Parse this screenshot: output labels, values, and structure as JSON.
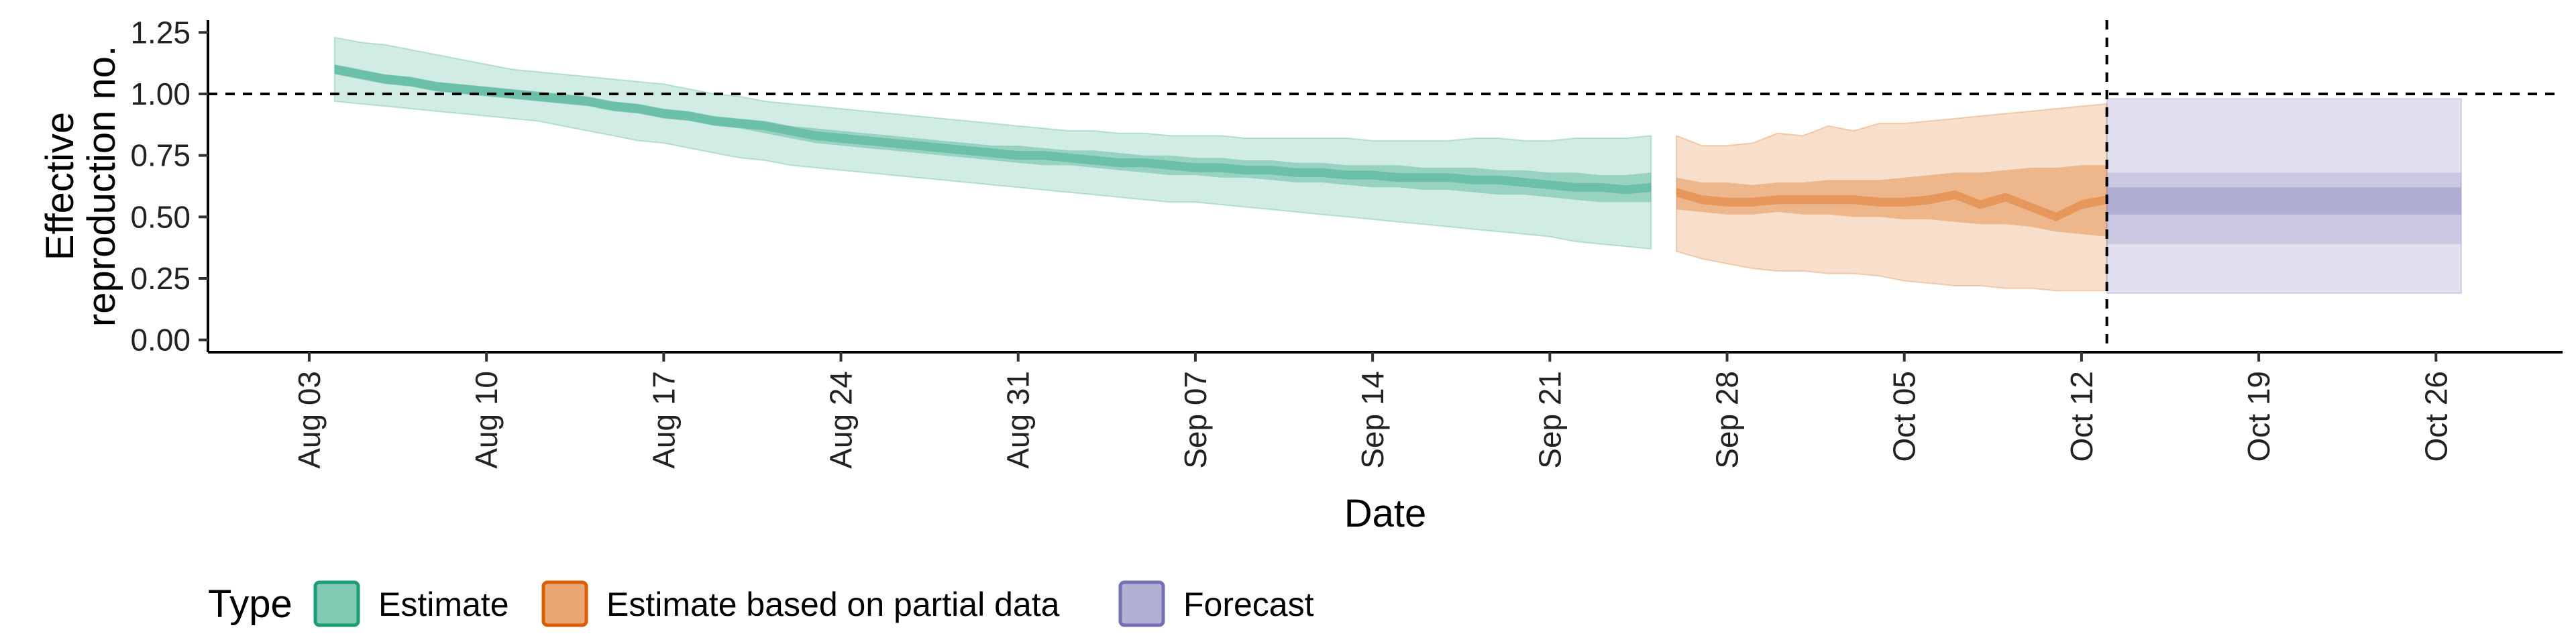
{
  "chart_data": {
    "type": "area",
    "xlabel": "Date",
    "ylabel_lines": [
      "Effective",
      "reproduction no."
    ],
    "ylim": [
      -0.05,
      1.3
    ],
    "y_ticks": [
      0.0,
      0.25,
      0.5,
      0.75,
      1.0,
      1.25
    ],
    "y_tick_labels": [
      "0.00",
      "0.25",
      "0.50",
      "0.75",
      "1.00",
      "1.25"
    ],
    "x_range": [
      "2020-07-30",
      "2020-10-31"
    ],
    "x_ticks": [
      "2020-08-03",
      "2020-08-10",
      "2020-08-17",
      "2020-08-24",
      "2020-08-31",
      "2020-09-07",
      "2020-09-14",
      "2020-09-21",
      "2020-09-28",
      "2020-10-05",
      "2020-10-12",
      "2020-10-19",
      "2020-10-26"
    ],
    "x_tick_labels": [
      "Aug 03",
      "Aug 10",
      "Aug 17",
      "Aug 24",
      "Aug 31",
      "Sep 07",
      "Sep 14",
      "Sep 21",
      "Sep 28",
      "Oct 05",
      "Oct 12",
      "Oct 19",
      "Oct 26"
    ],
    "reference_hline": 1.0,
    "reference_vline": "2020-10-13",
    "grid": false,
    "legend": {
      "title": "Type",
      "placement": "bottom-left",
      "entries": [
        "Estimate",
        "Estimate based on partial data",
        "Forecast"
      ]
    },
    "colors": {
      "Estimate": "#1b9e77",
      "Estimate based on partial data": "#d95f02",
      "Forecast": "#7570b3"
    },
    "series": [
      {
        "type_label": "Estimate",
        "dates": [
          "2020-08-04",
          "2020-08-05",
          "2020-08-06",
          "2020-08-07",
          "2020-08-08",
          "2020-08-09",
          "2020-08-10",
          "2020-08-11",
          "2020-08-12",
          "2020-08-13",
          "2020-08-14",
          "2020-08-15",
          "2020-08-16",
          "2020-08-17",
          "2020-08-18",
          "2020-08-19",
          "2020-08-20",
          "2020-08-21",
          "2020-08-22",
          "2020-08-23",
          "2020-08-24",
          "2020-08-25",
          "2020-08-26",
          "2020-08-27",
          "2020-08-28",
          "2020-08-29",
          "2020-08-30",
          "2020-08-31",
          "2020-09-01",
          "2020-09-02",
          "2020-09-03",
          "2020-09-04",
          "2020-09-05",
          "2020-09-06",
          "2020-09-07",
          "2020-09-08",
          "2020-09-09",
          "2020-09-10",
          "2020-09-11",
          "2020-09-12",
          "2020-09-13",
          "2020-09-14",
          "2020-09-15",
          "2020-09-16",
          "2020-09-17",
          "2020-09-18",
          "2020-09-19",
          "2020-09-20",
          "2020-09-21",
          "2020-09-22",
          "2020-09-23",
          "2020-09-24",
          "2020-09-25"
        ],
        "median": [
          1.1,
          1.08,
          1.06,
          1.05,
          1.03,
          1.02,
          1.01,
          1.0,
          0.99,
          0.98,
          0.97,
          0.95,
          0.94,
          0.92,
          0.91,
          0.89,
          0.88,
          0.87,
          0.85,
          0.83,
          0.82,
          0.81,
          0.8,
          0.79,
          0.78,
          0.77,
          0.76,
          0.75,
          0.75,
          0.74,
          0.73,
          0.72,
          0.72,
          0.71,
          0.7,
          0.7,
          0.69,
          0.69,
          0.68,
          0.68,
          0.67,
          0.67,
          0.66,
          0.66,
          0.66,
          0.65,
          0.65,
          0.64,
          0.63,
          0.62,
          0.62,
          0.61,
          0.62
        ],
        "lower_50": [
          1.08,
          1.06,
          1.04,
          1.03,
          1.01,
          1.0,
          0.99,
          0.98,
          0.97,
          0.96,
          0.95,
          0.93,
          0.92,
          0.9,
          0.89,
          0.87,
          0.86,
          0.84,
          0.82,
          0.8,
          0.79,
          0.78,
          0.77,
          0.76,
          0.75,
          0.74,
          0.73,
          0.72,
          0.71,
          0.71,
          0.7,
          0.69,
          0.68,
          0.67,
          0.67,
          0.66,
          0.66,
          0.65,
          0.64,
          0.64,
          0.63,
          0.62,
          0.62,
          0.61,
          0.61,
          0.6,
          0.59,
          0.59,
          0.58,
          0.57,
          0.56,
          0.56,
          0.56
        ],
        "upper_50": [
          1.12,
          1.1,
          1.08,
          1.07,
          1.05,
          1.04,
          1.03,
          1.02,
          1.01,
          1.0,
          0.99,
          0.97,
          0.96,
          0.94,
          0.93,
          0.91,
          0.9,
          0.89,
          0.87,
          0.86,
          0.85,
          0.84,
          0.83,
          0.82,
          0.81,
          0.8,
          0.79,
          0.79,
          0.78,
          0.77,
          0.77,
          0.76,
          0.75,
          0.75,
          0.74,
          0.74,
          0.73,
          0.73,
          0.72,
          0.72,
          0.71,
          0.71,
          0.71,
          0.7,
          0.7,
          0.7,
          0.69,
          0.69,
          0.68,
          0.68,
          0.67,
          0.67,
          0.68
        ],
        "lower_90": [
          0.97,
          0.96,
          0.95,
          0.94,
          0.93,
          0.92,
          0.91,
          0.9,
          0.89,
          0.87,
          0.85,
          0.83,
          0.81,
          0.8,
          0.78,
          0.76,
          0.74,
          0.73,
          0.71,
          0.7,
          0.69,
          0.68,
          0.67,
          0.66,
          0.65,
          0.64,
          0.63,
          0.62,
          0.61,
          0.6,
          0.59,
          0.58,
          0.57,
          0.56,
          0.56,
          0.55,
          0.54,
          0.53,
          0.52,
          0.51,
          0.5,
          0.49,
          0.48,
          0.47,
          0.46,
          0.45,
          0.44,
          0.43,
          0.42,
          0.4,
          0.39,
          0.38,
          0.37
        ],
        "upper_90": [
          1.23,
          1.21,
          1.2,
          1.18,
          1.16,
          1.14,
          1.12,
          1.1,
          1.09,
          1.08,
          1.07,
          1.06,
          1.05,
          1.04,
          1.02,
          1.0,
          0.99,
          0.97,
          0.96,
          0.95,
          0.94,
          0.93,
          0.92,
          0.91,
          0.9,
          0.89,
          0.88,
          0.87,
          0.86,
          0.85,
          0.85,
          0.84,
          0.84,
          0.83,
          0.83,
          0.83,
          0.82,
          0.82,
          0.82,
          0.82,
          0.82,
          0.81,
          0.81,
          0.81,
          0.81,
          0.82,
          0.82,
          0.81,
          0.81,
          0.82,
          0.82,
          0.82,
          0.83
        ]
      },
      {
        "type_label": "Estimate based on partial data",
        "dates": [
          "2020-09-26",
          "2020-09-27",
          "2020-09-28",
          "2020-09-29",
          "2020-09-30",
          "2020-10-01",
          "2020-10-02",
          "2020-10-03",
          "2020-10-04",
          "2020-10-05",
          "2020-10-06",
          "2020-10-07",
          "2020-10-08",
          "2020-10-09",
          "2020-10-10",
          "2020-10-11",
          "2020-10-12",
          "2020-10-13"
        ],
        "median": [
          0.6,
          0.57,
          0.56,
          0.56,
          0.57,
          0.57,
          0.57,
          0.57,
          0.56,
          0.56,
          0.57,
          0.59,
          0.55,
          0.58,
          0.54,
          0.5,
          0.55,
          0.57
        ],
        "lower_50": [
          0.53,
          0.52,
          0.51,
          0.51,
          0.52,
          0.51,
          0.51,
          0.5,
          0.5,
          0.49,
          0.49,
          0.48,
          0.47,
          0.47,
          0.46,
          0.44,
          0.43,
          0.42
        ],
        "upper_50": [
          0.66,
          0.64,
          0.64,
          0.63,
          0.64,
          0.64,
          0.65,
          0.65,
          0.65,
          0.66,
          0.67,
          0.68,
          0.68,
          0.69,
          0.7,
          0.7,
          0.71,
          0.71
        ],
        "lower_90": [
          0.36,
          0.33,
          0.31,
          0.29,
          0.28,
          0.28,
          0.27,
          0.27,
          0.26,
          0.24,
          0.23,
          0.22,
          0.22,
          0.21,
          0.21,
          0.2,
          0.2,
          0.2
        ],
        "upper_90": [
          0.83,
          0.79,
          0.79,
          0.8,
          0.84,
          0.83,
          0.87,
          0.85,
          0.88,
          0.88,
          0.89,
          0.9,
          0.91,
          0.92,
          0.93,
          0.94,
          0.95,
          0.96
        ]
      },
      {
        "type_label": "Forecast",
        "dates": [
          "2020-10-14",
          "2020-10-27"
        ],
        "median": [
          0.57,
          0.57
        ],
        "lower_50": [
          0.51,
          0.51
        ],
        "upper_50": [
          0.62,
          0.62
        ],
        "lower_75": [
          0.39,
          0.39
        ],
        "upper_75": [
          0.68,
          0.68
        ],
        "lower_90": [
          0.19,
          0.19
        ],
        "upper_90": [
          0.98,
          0.98
        ]
      }
    ]
  }
}
